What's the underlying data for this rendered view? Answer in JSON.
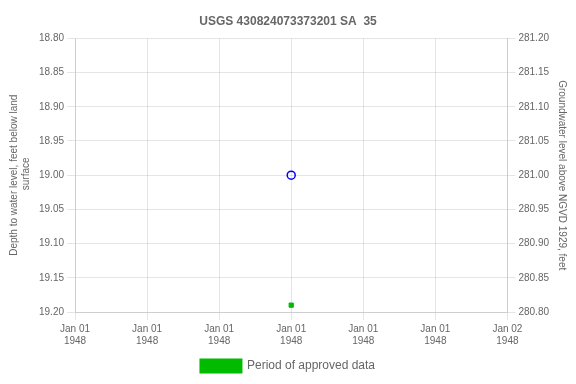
{
  "chart_data": {
    "type": "scatter",
    "title": "USGS 430824073373201 SA  35",
    "y_label": "Depth to water level, feet below land\n surface",
    "y2_label": "Groundwater level above NGVD 1929, feet",
    "categories": [
      "Jan 01\n1948",
      "Jan 01\n1948",
      "Jan 01\n1948",
      "Jan 01\n1948",
      "Jan 01\n1948",
      "Jan 01\n1948",
      "Jan 02\n1948"
    ],
    "series": [
      {
        "color": "blue",
        "marker": "circle_open",
        "values": [
          null,
          null,
          null,
          19.0,
          null,
          null,
          null
        ]
      },
      {
        "name": "Period of approved data",
        "color": "#00bb00",
        "marker": "square",
        "values": [
          null,
          null,
          null,
          19.19,
          null,
          null,
          null
        ]
      }
    ],
    "ylim": [
      19.2,
      18.8
    ],
    "yticks": [
      {
        "value": 18.8,
        "label": "18.80"
      },
      {
        "value": 18.85,
        "label": "18.85"
      },
      {
        "value": 18.9,
        "label": "18.90"
      },
      {
        "value": 18.95,
        "label": "18.95"
      },
      {
        "value": 19.0,
        "label": "19.00"
      },
      {
        "value": 19.05,
        "label": "19.05"
      },
      {
        "value": 19.1,
        "label": "19.10"
      },
      {
        "value": 19.15,
        "label": "19.15"
      },
      {
        "value": 19.2,
        "label": "19.20"
      }
    ],
    "y2lim": [
      280.8,
      281.2
    ],
    "y2ticks": [
      {
        "value": 281.2,
        "label": "281.20"
      },
      {
        "value": 281.15,
        "label": "281.15"
      },
      {
        "value": 281.1,
        "label": "281.10"
      },
      {
        "value": 281.05,
        "label": "281.05"
      },
      {
        "value": 281.0,
        "label": "281.00"
      },
      {
        "value": 280.95,
        "label": "280.95"
      },
      {
        "value": 280.9,
        "label": "280.90"
      },
      {
        "value": 280.85,
        "label": "280.85"
      },
      {
        "value": 280.8,
        "label": "280.80"
      }
    ],
    "grid": true,
    "legend": "bottom"
  }
}
